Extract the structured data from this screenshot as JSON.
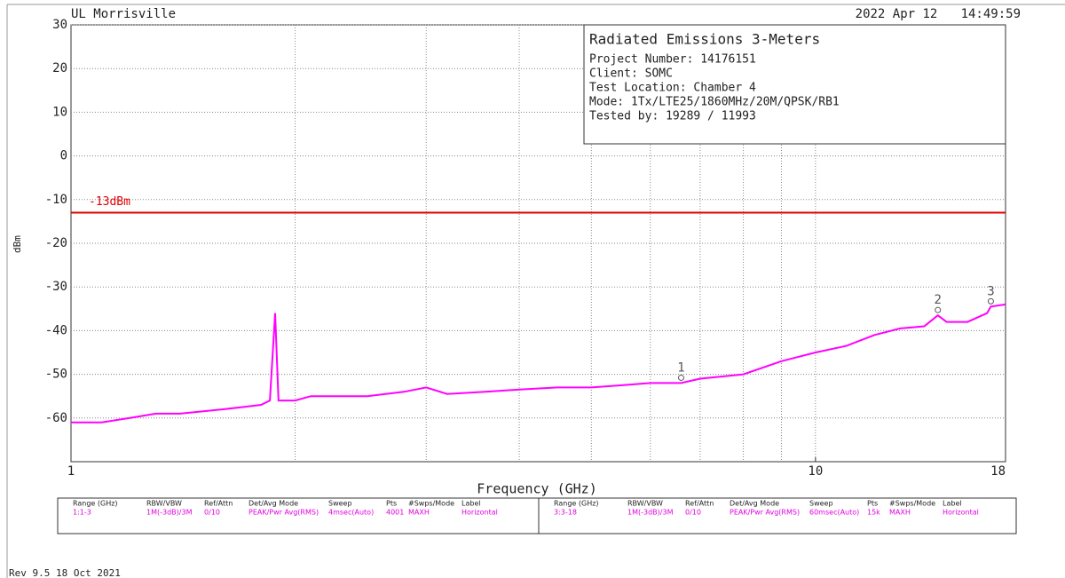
{
  "header": {
    "site": "UL Morrisville",
    "date": "2022 Apr 12",
    "time": "14:49:59"
  },
  "info_box": {
    "title": "Radiated Emissions 3-Meters",
    "lines": [
      "Project Number: 14176151",
      "Client: SOMC",
      "Test Location: Chamber 4",
      "Mode: 1Tx/LTE25/1860MHz/20M/QPSK/RB1",
      "Tested by: 19289 / 11993"
    ]
  },
  "chart_data": {
    "type": "line",
    "xlabel": "Frequency (GHz)",
    "ylabel": "dBm",
    "xscale": "log",
    "xlim": [
      1,
      18
    ],
    "xticks": [
      1,
      10,
      18
    ],
    "xminor": [
      2,
      3,
      4,
      5,
      6,
      7,
      8,
      9,
      10
    ],
    "ylim": [
      -70,
      30
    ],
    "yticks": [
      30,
      20,
      10,
      0,
      -10,
      -20,
      -30,
      -40,
      -50,
      -60
    ],
    "grid": true,
    "series": [
      {
        "name": "Horizontal",
        "color": "#ff00ff",
        "x": [
          1,
          1.1,
          1.2,
          1.3,
          1.4,
          1.5,
          1.6,
          1.7,
          1.8,
          1.85,
          1.88,
          1.9,
          2.0,
          2.1,
          2.3,
          2.5,
          2.8,
          3.0,
          3.2,
          3.6,
          4,
          4.5,
          5,
          5.5,
          6,
          6.6,
          7,
          8,
          9,
          10,
          11,
          12,
          13,
          14,
          14.6,
          15,
          16,
          17,
          17.2,
          18
        ],
        "values": [
          -61,
          -61,
          -60,
          -59,
          -59,
          -58.5,
          -58,
          -57.5,
          -57,
          -56,
          -36,
          -56,
          -56,
          -55,
          -55,
          -55,
          -54,
          -53,
          -54.5,
          -54,
          -53.5,
          -53,
          -53,
          -52.5,
          -52,
          -52,
          -51,
          -50,
          -47,
          -45,
          -43.5,
          -41,
          -39.5,
          -39,
          -36.5,
          -38,
          -38,
          -36,
          -34.5,
          -34
        ]
      }
    ],
    "limit": {
      "value": -13,
      "label": "-13dBm",
      "color": "#e00000"
    },
    "markers": [
      {
        "label": "1",
        "x": 6.6,
        "value": -52
      },
      {
        "label": "2",
        "x": 14.6,
        "value": -36.5
      },
      {
        "label": "3",
        "x": 17.2,
        "value": -34.5
      }
    ]
  },
  "settings_table": {
    "headers": [
      "Range (GHz)",
      "RBW/VBW",
      "Ref/Attn",
      "Det/Avg Mode",
      "Sweep",
      "Pts",
      "#Swps/Mode",
      "Label"
    ],
    "rows": [
      [
        "1:1-3",
        "1M(-3dB)/3M",
        "0/10",
        "PEAK/Pwr Avg(RMS)",
        "4msec(Auto)",
        "4001",
        "MAXH",
        "Horizontal"
      ],
      [
        "3:3-18",
        "1M(-3dB)/3M",
        "0/10",
        "PEAK/Pwr Avg(RMS)",
        "60msec(Auto)",
        "15k",
        "MAXH",
        "Horizontal"
      ]
    ]
  },
  "footer": "Rev 9.5 18 Oct 2021"
}
